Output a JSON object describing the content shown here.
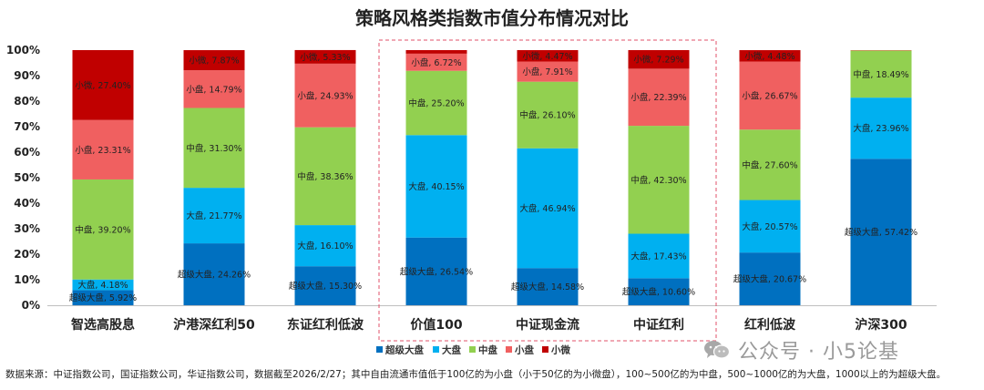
{
  "colors": {
    "超级大盘": "#0070C0",
    "大盘": "#00B0F0",
    "中盘": "#92D050",
    "小盘": "#F06060",
    "小微": "#C00000",
    "highlight": "#E0506A"
  },
  "chart_data": {
    "type": "bar",
    "stacked": true,
    "title": "策略风格类指数市值分布情况对比",
    "categories": [
      "智选高股息",
      "沪港深红利50",
      "东证红利低波",
      "价值100",
      "中证现金流",
      "中证红利",
      "红利低波",
      "沪深300"
    ],
    "yticks": [
      "0%",
      "10%",
      "20%",
      "30%",
      "40%",
      "50%",
      "60%",
      "70%",
      "80%",
      "90%",
      "100%"
    ],
    "ylim": [
      0,
      100
    ],
    "highlighted_categories": [
      "价值100",
      "中证现金流",
      "中证红利"
    ],
    "legend_position": "bottom",
    "series": [
      {
        "name": "超级大盘",
        "values": [
          5.92,
          24.26,
          15.3,
          26.54,
          14.58,
          10.6,
          20.67,
          57.42
        ],
        "labels": [
          "超级大盘, 5.92%",
          "超级大盘, 24.26%",
          "超级大盘, 15.30%",
          "超级大盘, 26.54%",
          "超级大盘, 14.58%",
          "超级大盘, 10.60%",
          "超级大盘, 20.67%",
          "超级大盘, 57.42%"
        ]
      },
      {
        "name": "大盘",
        "values": [
          4.18,
          21.77,
          16.1,
          40.15,
          46.94,
          17.43,
          20.57,
          23.96
        ],
        "labels": [
          "大盘, 4.18%",
          "大盘, 21.77%",
          "大盘, 16.10%",
          "大盘, 40.15%",
          "大盘, 46.94%",
          "大盘, 17.43%",
          "大盘, 20.57%",
          "大盘, 23.96%"
        ]
      },
      {
        "name": "中盘",
        "values": [
          39.2,
          31.3,
          38.36,
          25.2,
          26.1,
          42.3,
          27.6,
          18.49
        ],
        "labels": [
          "中盘, 39.20%",
          "中盘, 31.30%",
          "中盘, 38.36%",
          "中盘, 25.20%",
          "中盘, 26.10%",
          "中盘, 42.30%",
          "中盘, 27.60%",
          "中盘, 18.49%"
        ]
      },
      {
        "name": "小盘",
        "values": [
          23.31,
          14.79,
          24.93,
          6.72,
          7.91,
          22.39,
          26.67,
          0.13
        ],
        "labels": [
          "小盘, 23.31%",
          "小盘, 14.79%",
          "小盘, 24.93%",
          "小盘, 6.72%",
          "小盘, 7.91%",
          "小盘, 22.39%",
          "小盘, 26.67%",
          null
        ]
      },
      {
        "name": "小微",
        "values": [
          27.4,
          7.87,
          5.33,
          1.39,
          4.47,
          7.29,
          4.48,
          0
        ],
        "labels": [
          "小微, 27.40%",
          "小微, 7.87%",
          "小微, 5.33%",
          null,
          "小微, 4.47%",
          "小微, 7.29%",
          "小微, 4.48%",
          null
        ]
      }
    ]
  },
  "footnote": "数据来源：中证指数公司，国证指数公司，华证指数公司，数据截至2026/2/27；其中自由流通市值低于100亿的为小盘（小于50亿的为小微盘），100~500亿的为中盘，500~1000亿的为大盘，1000以上的为超级大盘。",
  "watermark": "公众号 · 小5论基",
  "watermark_icon": "wechat-icon"
}
